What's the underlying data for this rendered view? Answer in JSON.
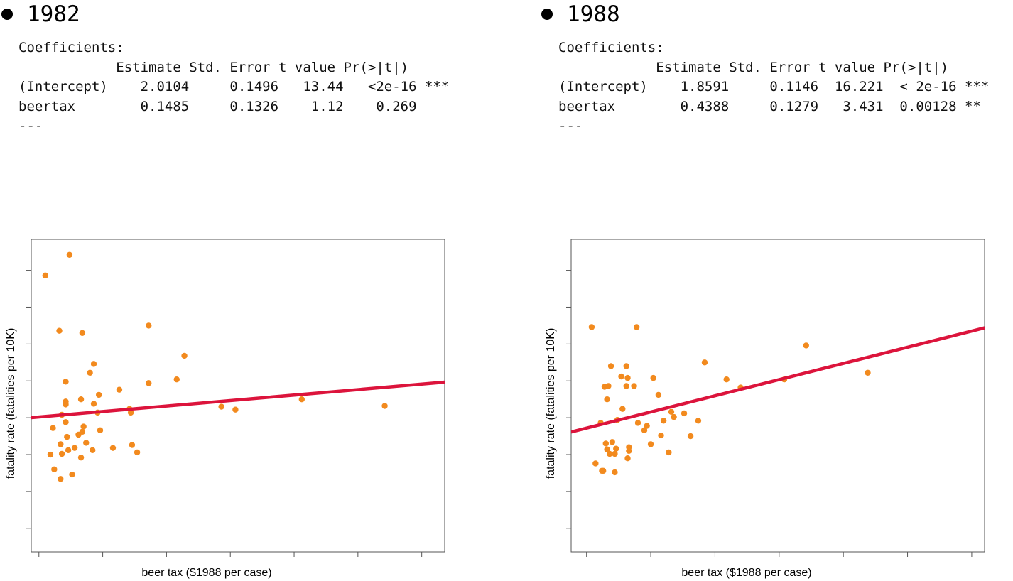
{
  "chart_data": [
    {
      "type": "scatter",
      "title": "1982",
      "xlabel": "beer tax ($1988 per case)",
      "ylabel": "fatality rate (fatalities per 10K)",
      "xlim": [
        -0.06,
        3.18
      ],
      "ylim": [
        0.18,
        4.42
      ],
      "regression": {
        "intercept": 2.0104,
        "slope": 0.1485
      },
      "colors": {
        "points": "#f28a1e",
        "line": "#dc143c"
      },
      "coefficients_text": [
        "Coefficients:",
        "            Estimate Std. Error t value Pr(>|t|)",
        "(Intercept)    2.0104     0.1496   13.44   <2e-16 ***",
        "beertax        0.1485     0.1326    1.12    0.269",
        "---"
      ],
      "points": [
        {
          "x": 0.05,
          "y": 3.93
        },
        {
          "x": 0.24,
          "y": 4.21
        },
        {
          "x": 0.16,
          "y": 3.18
        },
        {
          "x": 0.34,
          "y": 3.15
        },
        {
          "x": 0.86,
          "y": 3.25
        },
        {
          "x": 0.43,
          "y": 2.73
        },
        {
          "x": 0.4,
          "y": 2.61
        },
        {
          "x": 0.21,
          "y": 2.49
        },
        {
          "x": 0.47,
          "y": 2.31
        },
        {
          "x": 0.33,
          "y": 2.25
        },
        {
          "x": 0.21,
          "y": 2.22
        },
        {
          "x": 0.43,
          "y": 2.19
        },
        {
          "x": 0.21,
          "y": 2.18
        },
        {
          "x": 0.46,
          "y": 2.07
        },
        {
          "x": 0.18,
          "y": 2.04
        },
        {
          "x": 0.21,
          "y": 1.94
        },
        {
          "x": 0.11,
          "y": 1.86
        },
        {
          "x": 0.35,
          "y": 1.88
        },
        {
          "x": 0.34,
          "y": 1.81
        },
        {
          "x": 0.31,
          "y": 1.77
        },
        {
          "x": 0.22,
          "y": 1.74
        },
        {
          "x": 0.48,
          "y": 1.83
        },
        {
          "x": 0.17,
          "y": 1.64
        },
        {
          "x": 0.37,
          "y": 1.66
        },
        {
          "x": 0.23,
          "y": 1.56
        },
        {
          "x": 0.28,
          "y": 1.59
        },
        {
          "x": 0.58,
          "y": 1.59
        },
        {
          "x": 0.42,
          "y": 1.56
        },
        {
          "x": 0.09,
          "y": 1.5
        },
        {
          "x": 0.18,
          "y": 1.51
        },
        {
          "x": 0.33,
          "y": 1.46
        },
        {
          "x": 0.26,
          "y": 1.23
        },
        {
          "x": 0.12,
          "y": 1.3
        },
        {
          "x": 0.17,
          "y": 1.17
        },
        {
          "x": 0.73,
          "y": 1.63
        },
        {
          "x": 0.77,
          "y": 1.53
        },
        {
          "x": 0.63,
          "y": 2.38
        },
        {
          "x": 0.71,
          "y": 2.12
        },
        {
          "x": 0.72,
          "y": 2.07
        },
        {
          "x": 0.86,
          "y": 2.47
        },
        {
          "x": 1.08,
          "y": 2.52
        },
        {
          "x": 1.14,
          "y": 2.84
        },
        {
          "x": 1.43,
          "y": 2.15
        },
        {
          "x": 1.54,
          "y": 2.11
        },
        {
          "x": 2.06,
          "y": 2.25
        },
        {
          "x": 2.71,
          "y": 2.16
        }
      ]
    },
    {
      "type": "scatter",
      "title": "1988",
      "xlabel": "beer tax ($1988 per case)",
      "ylabel": "fatality rate (fatalities per 10K)",
      "xlim": [
        -0.12,
        3.1
      ],
      "ylim": [
        0.18,
        4.42
      ],
      "regression": {
        "intercept": 1.8591,
        "slope": 0.4388
      },
      "colors": {
        "points": "#f28a1e",
        "line": "#dc143c"
      },
      "coefficients_text": [
        "Coefficients:",
        "            Estimate Std. Error t value Pr(>|t|)",
        "(Intercept)    1.8591     0.1146  16.221  < 2e-16 ***",
        "beertax        0.4388     0.1279   3.431  0.00128 **",
        "---"
      ],
      "points": [
        {
          "x": 0.04,
          "y": 3.23
        },
        {
          "x": 0.39,
          "y": 3.23
        },
        {
          "x": 0.19,
          "y": 2.7
        },
        {
          "x": 0.31,
          "y": 2.7
        },
        {
          "x": 0.27,
          "y": 2.56
        },
        {
          "x": 0.32,
          "y": 2.54
        },
        {
          "x": 0.14,
          "y": 2.42
        },
        {
          "x": 0.17,
          "y": 2.43
        },
        {
          "x": 0.31,
          "y": 2.43
        },
        {
          "x": 0.37,
          "y": 2.43
        },
        {
          "x": 0.52,
          "y": 2.54
        },
        {
          "x": 0.56,
          "y": 2.31
        },
        {
          "x": 0.16,
          "y": 2.25
        },
        {
          "x": 0.28,
          "y": 2.12
        },
        {
          "x": 0.24,
          "y": 1.97
        },
        {
          "x": 0.4,
          "y": 1.93
        },
        {
          "x": 0.47,
          "y": 1.89
        },
        {
          "x": 0.6,
          "y": 1.96
        },
        {
          "x": 0.68,
          "y": 2.01
        },
        {
          "x": 0.76,
          "y": 2.06
        },
        {
          "x": 0.11,
          "y": 1.93
        },
        {
          "x": 0.66,
          "y": 2.08
        },
        {
          "x": 0.45,
          "y": 1.83
        },
        {
          "x": 0.87,
          "y": 1.96
        },
        {
          "x": 0.15,
          "y": 1.65
        },
        {
          "x": 0.2,
          "y": 1.67
        },
        {
          "x": 0.58,
          "y": 1.76
        },
        {
          "x": 0.81,
          "y": 1.75
        },
        {
          "x": 0.16,
          "y": 1.57
        },
        {
          "x": 0.23,
          "y": 1.58
        },
        {
          "x": 0.5,
          "y": 1.64
        },
        {
          "x": 0.33,
          "y": 1.6
        },
        {
          "x": 0.33,
          "y": 1.55
        },
        {
          "x": 0.18,
          "y": 1.51
        },
        {
          "x": 0.22,
          "y": 1.51
        },
        {
          "x": 0.64,
          "y": 1.53
        },
        {
          "x": 0.32,
          "y": 1.45
        },
        {
          "x": 0.07,
          "y": 1.38
        },
        {
          "x": 0.12,
          "y": 1.28
        },
        {
          "x": 0.13,
          "y": 1.28
        },
        {
          "x": 0.22,
          "y": 1.26
        },
        {
          "x": 0.92,
          "y": 2.75
        },
        {
          "x": 1.09,
          "y": 2.52
        },
        {
          "x": 1.2,
          "y": 2.41
        },
        {
          "x": 1.54,
          "y": 2.52
        },
        {
          "x": 1.71,
          "y": 2.98
        },
        {
          "x": 2.19,
          "y": 2.61
        }
      ]
    }
  ]
}
